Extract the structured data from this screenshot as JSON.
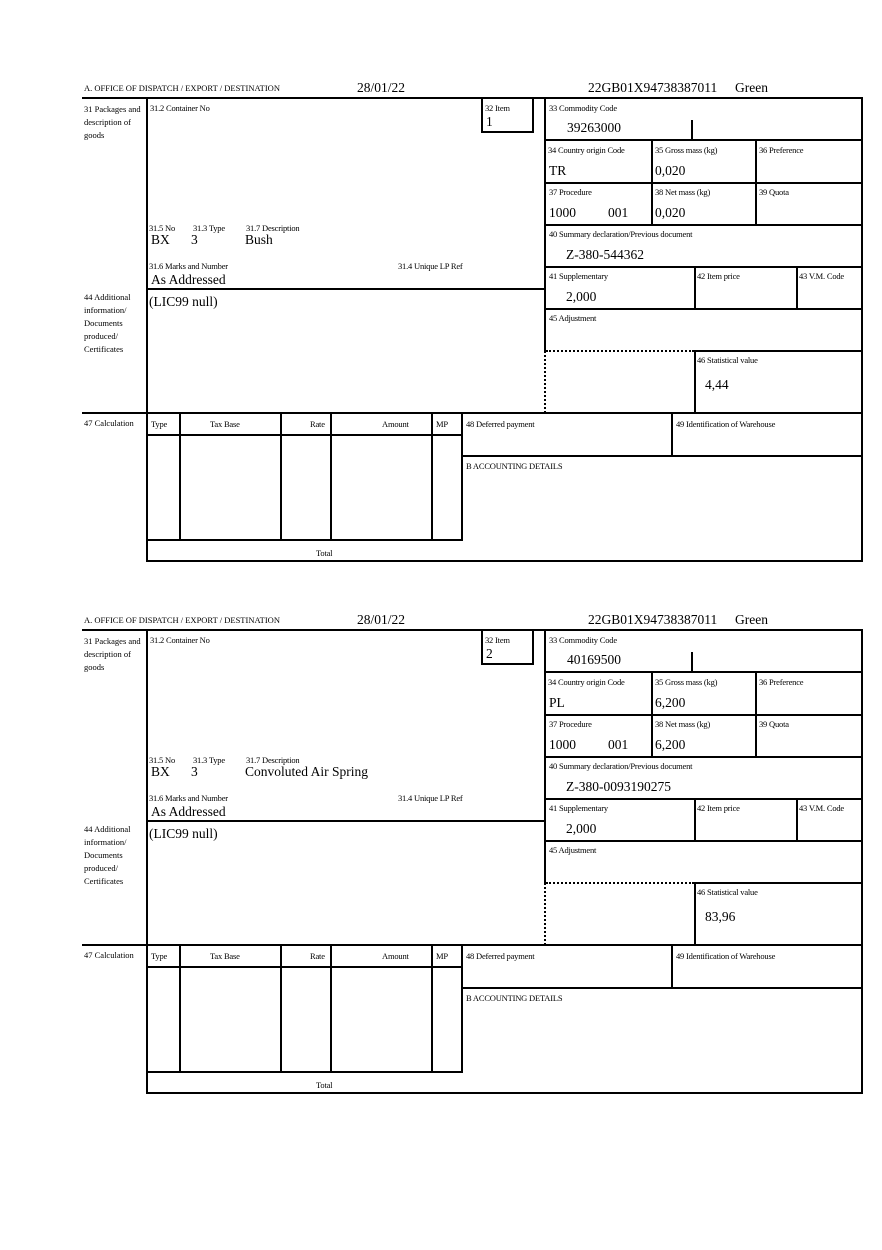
{
  "labels": {
    "office": "A.  OFFICE OF DISPATCH / EXPORT / DESTINATION",
    "packages": "31 Packages and description of goods",
    "container_no": "31.2 Container No",
    "item": "32 Item",
    "commodity_code": "33 Commodity Code",
    "country_origin": "34 Country origin Code",
    "gross_mass": "35 Gross mass (kg)",
    "preference": "36 Preference",
    "procedure": "37 Procedure",
    "net_mass": "38 Net mass (kg)",
    "quota": "39 Quota",
    "summary_decl": "40 Summary declaration/Previous document",
    "pkg_no": "31.5 No",
    "pkg_type": "31.3 Type",
    "pkg_desc": "31.7 Description",
    "marks": "31.6 Marks and Number",
    "unique_lp": "31.4 Unique LP Ref",
    "supplementary": "41 Supplementary",
    "item_price": "42 Item price",
    "vm_code": "43 V.M. Code",
    "additional_info": "44 Additional information/ Documents produced/ Certificates",
    "adjustment": "45 Adjustment",
    "statistical_value": "46 Statistical value",
    "calculation": "47 Calculation",
    "calc_type": "Type",
    "calc_tax_base": "Tax Base",
    "calc_rate": "Rate",
    "calc_amount": "Amount",
    "calc_mp": "MP",
    "deferred_payment": "48 Deferred payment",
    "warehouse": "49 Identification of Warehouse",
    "accounting": "B ACCOUNTING DETAILS",
    "total": "Total"
  },
  "items": [
    {
      "date": "28/01/22",
      "reference": "22GB01X94738387011",
      "route": "Green",
      "item_no": "1",
      "commodity_code": "39263000",
      "country_origin": "TR",
      "gross_mass": "0,020",
      "procedure": "1000",
      "procedure_add": "001",
      "net_mass": "0,020",
      "summary_decl": "Z-380-544362",
      "pkg_kind": "BX",
      "pkg_count": "3",
      "description": "Bush",
      "marks": "As Addressed",
      "supplementary": "2,000",
      "additional_info": "(LIC99 null)",
      "statistical_value": "4,44"
    },
    {
      "date": "28/01/22",
      "reference": "22GB01X94738387011",
      "route": "Green",
      "item_no": "2",
      "commodity_code": "40169500",
      "country_origin": "PL",
      "gross_mass": "6,200",
      "procedure": "1000",
      "procedure_add": "001",
      "net_mass": "6,200",
      "summary_decl": "Z-380-0093190275",
      "pkg_kind": "BX",
      "pkg_count": "3",
      "description": "Convoluted Air Spring",
      "marks": "As Addressed",
      "supplementary": "2,000",
      "additional_info": "(LIC99 null)",
      "statistical_value": "83,96"
    }
  ]
}
